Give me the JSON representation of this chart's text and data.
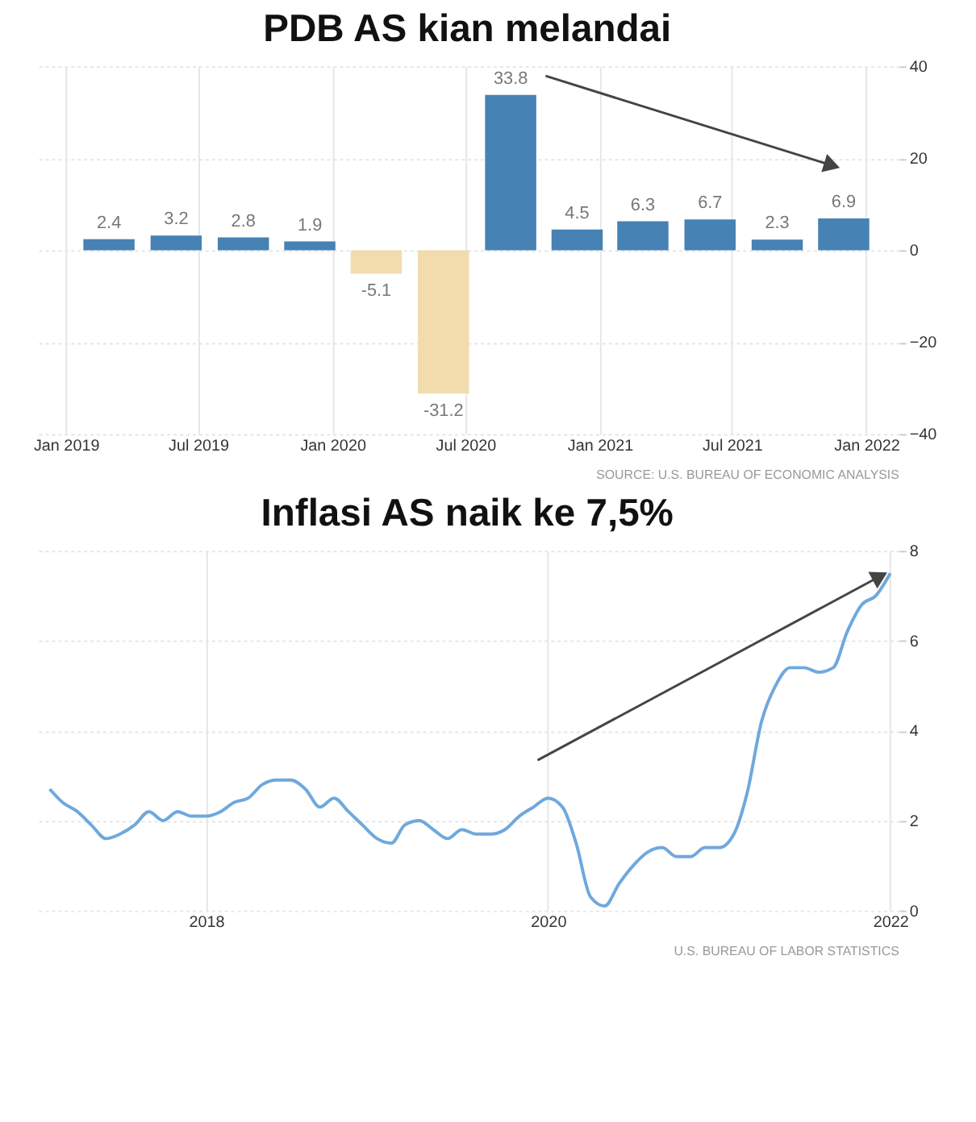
{
  "chart_data": [
    {
      "type": "bar",
      "title": "PDB AS kian melandai",
      "x": [
        "2019-03",
        "2019-06",
        "2019-09",
        "2019-12",
        "2020-03",
        "2020-06",
        "2020-09",
        "2020-12",
        "2021-03",
        "2021-06",
        "2021-09",
        "2021-12"
      ],
      "values": [
        2.4,
        3.2,
        2.8,
        1.9,
        -5.1,
        -31.2,
        33.8,
        4.5,
        6.3,
        6.7,
        2.3,
        6.9
      ],
      "colors": [
        "#4682b4",
        "#4682b4",
        "#4682b4",
        "#4682b4",
        "#f2dcae",
        "#f2dcae",
        "#4682b4",
        "#4682b4",
        "#4682b4",
        "#4682b4",
        "#4682b4",
        "#4682b4"
      ],
      "data_labels": true,
      "xlim": [
        "2018-11-20",
        "2022-02-15"
      ],
      "xticks": [
        {
          "value": "2019-01",
          "label": "Jan 2019"
        },
        {
          "value": "2019-07",
          "label": "Jul 2019"
        },
        {
          "value": "2020-01",
          "label": "Jan 2020"
        },
        {
          "value": "2020-07",
          "label": "Jul 2020"
        },
        {
          "value": "2021-01",
          "label": "Jan 2021"
        },
        {
          "value": "2021-07",
          "label": "Jul 2021"
        },
        {
          "value": "2022-01",
          "label": "Jan 2022"
        }
      ],
      "ylim": [
        -40,
        40
      ],
      "yticks": [
        -40,
        -20,
        0,
        20,
        40
      ],
      "grid": true,
      "legend": false,
      "annotations": [
        "SOURCE: U.S. BUREAU OF ECONOMIC ANALYSIS"
      ]
    },
    {
      "type": "line",
      "title": "Inflasi AS naik ke 7,5%",
      "x": [
        "2017-02",
        "2017-03",
        "2017-04",
        "2017-05",
        "2017-06",
        "2017-07",
        "2017-08",
        "2017-09",
        "2017-10",
        "2017-11",
        "2017-12",
        "2018-01",
        "2018-02",
        "2018-03",
        "2018-04",
        "2018-05",
        "2018-06",
        "2018-07",
        "2018-08",
        "2018-09",
        "2018-10",
        "2018-11",
        "2018-12",
        "2019-01",
        "2019-02",
        "2019-03",
        "2019-04",
        "2019-05",
        "2019-06",
        "2019-07",
        "2019-08",
        "2019-09",
        "2019-10",
        "2019-11",
        "2019-12",
        "2020-01",
        "2020-02",
        "2020-03",
        "2020-04",
        "2020-05",
        "2020-06",
        "2020-07",
        "2020-08",
        "2020-09",
        "2020-10",
        "2020-11",
        "2020-12",
        "2021-01",
        "2021-02",
        "2021-03",
        "2021-04",
        "2021-05",
        "2021-06",
        "2021-07",
        "2021-08",
        "2021-09",
        "2021-10",
        "2021-11",
        "2021-12",
        "2022-01"
      ],
      "series": [
        {
          "color": "#6fa8dc",
          "values": [
            2.7,
            2.4,
            2.2,
            1.9,
            1.6,
            1.7,
            1.9,
            2.2,
            2.0,
            2.2,
            2.1,
            2.1,
            2.2,
            2.4,
            2.5,
            2.8,
            2.9,
            2.9,
            2.7,
            2.3,
            2.5,
            2.2,
            1.9,
            1.6,
            1.5,
            1.9,
            2.0,
            1.8,
            1.6,
            1.8,
            1.7,
            1.7,
            1.8,
            2.1,
            2.3,
            2.5,
            2.3,
            1.5,
            0.3,
            0.1,
            0.6,
            1.0,
            1.3,
            1.4,
            1.2,
            1.2,
            1.4,
            1.4,
            1.7,
            2.6,
            4.2,
            5.0,
            5.4,
            5.4,
            5.3,
            5.4,
            6.2,
            6.8,
            7.0,
            7.5
          ]
        }
      ],
      "marker": "none",
      "line_style": "solid",
      "xlim": [
        "2017-01",
        "2022-01-20"
      ],
      "xticks": [
        "2018",
        "2020",
        "2022"
      ],
      "ylim": [
        0,
        8
      ],
      "yticks": [
        0,
        2,
        4,
        6,
        8
      ],
      "grid": true,
      "legend": false,
      "annotations": [
        "U.S. BUREAU OF LABOR STATISTICS"
      ]
    }
  ]
}
